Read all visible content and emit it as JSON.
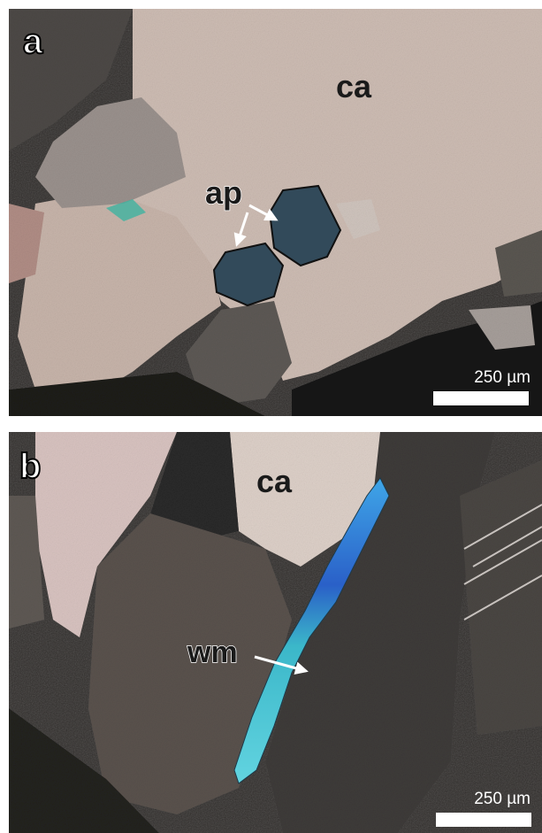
{
  "panels": [
    {
      "label": "a",
      "annotations": [
        "ca",
        "ap"
      ],
      "scale_bar": "250 µm"
    },
    {
      "label": "b",
      "annotations": [
        "ca",
        "wm"
      ],
      "scale_bar": "250 µm"
    }
  ]
}
